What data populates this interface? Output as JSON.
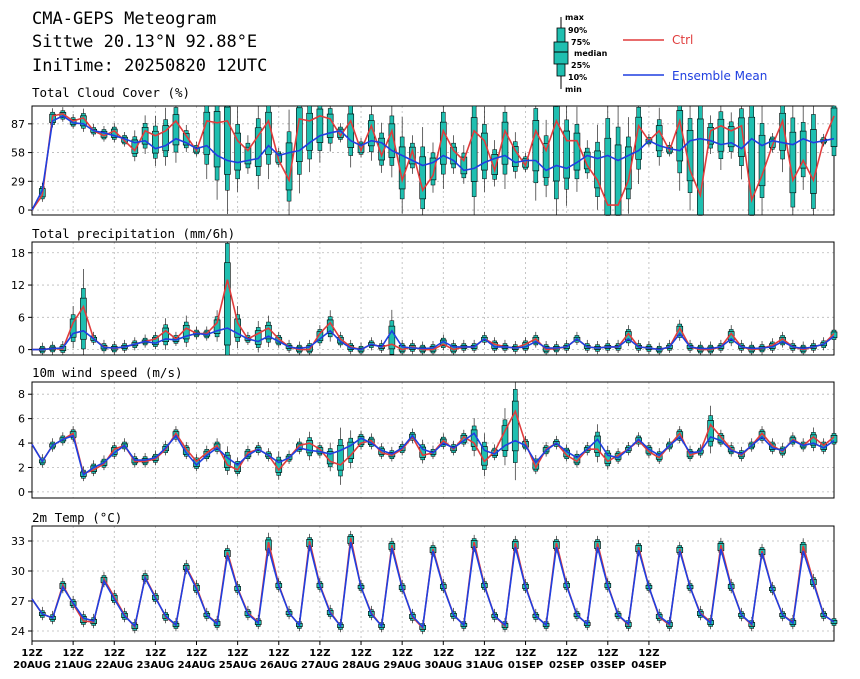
{
  "header": {
    "title": "CMA-GEPS Meteogram",
    "location": "Sittwe 20.13°N 92.88°E",
    "init_time": "IniTime: 20250820 12UTC"
  },
  "legend": {
    "box_labels": [
      "max",
      "90%",
      "75%",
      "median",
      "25%",
      "10%",
      "min"
    ],
    "ctrl_label": "Ctrl",
    "mean_label": "Ensemble Mean",
    "ctrl_color": "#e03c3c",
    "mean_color": "#1f3fe0",
    "box_color": "#1fbfb0"
  },
  "x_axis": {
    "hour_label": "12Z",
    "date_labels": [
      "20AUG",
      "21AUG",
      "22AUG",
      "23AUG",
      "24AUG",
      "25AUG",
      "26AUG",
      "27AUG",
      "28AUG",
      "29AUG",
      "30AUG",
      "31AUG",
      "01SEP",
      "02SEP",
      "03SEP",
      "04SEP"
    ]
  },
  "chart_data": [
    {
      "type": "line",
      "title": "Total Cloud Cover (%)",
      "ylim": [
        -5,
        105
      ],
      "yticks": [
        0,
        29,
        58,
        87
      ],
      "grid": true,
      "x_unit": "6-hourly steps from 20AUG 12Z",
      "series": [
        {
          "name": "Ctrl",
          "values": [
            0,
            15,
            95,
            97,
            90,
            93,
            80,
            75,
            80,
            70,
            60,
            80,
            75,
            80,
            90,
            75,
            60,
            90,
            88,
            90,
            70,
            60,
            75,
            90,
            50,
            30,
            92,
            90,
            95,
            92,
            75,
            90,
            60,
            85,
            55,
            80,
            30,
            60,
            20,
            35,
            80,
            60,
            50,
            80,
            70,
            40,
            80,
            60,
            45,
            80,
            60,
            90,
            70,
            70,
            45,
            30,
            5,
            5,
            30,
            85,
            70,
            80,
            60,
            90,
            40,
            15,
            80,
            85,
            80,
            85,
            10,
            35,
            65,
            90,
            30,
            50,
            30,
            70,
            95
          ]
        },
        {
          "name": "Ensemble Mean",
          "values": [
            0,
            20,
            90,
            95,
            88,
            87,
            80,
            78,
            75,
            72,
            68,
            70,
            62,
            65,
            72,
            68,
            62,
            65,
            55,
            50,
            48,
            50,
            52,
            65,
            55,
            58,
            60,
            68,
            75,
            78,
            80,
            70,
            65,
            70,
            68,
            60,
            55,
            50,
            45,
            48,
            55,
            50,
            40,
            42,
            48,
            52,
            55,
            48,
            50,
            50,
            40,
            45,
            42,
            48,
            55,
            52,
            55,
            50,
            55,
            60,
            70,
            65,
            62,
            60,
            70,
            72,
            70,
            66,
            68,
            62,
            72,
            65,
            70,
            68,
            66,
            72,
            68,
            70,
            72
          ]
        }
      ]
    },
    {
      "type": "line",
      "title": "Total precipitation (mm/6h)",
      "ylim": [
        -1,
        20
      ],
      "yticks": [
        0,
        6,
        12,
        18
      ],
      "grid": true,
      "x_unit": "6-hourly steps from 20AUG 12Z",
      "series": [
        {
          "name": "Ctrl",
          "values": [
            0,
            0,
            0.2,
            0.1,
            5,
            8,
            2,
            0.5,
            0.2,
            0.5,
            1,
            1.5,
            2,
            3.5,
            2,
            4,
            3,
            3,
            5,
            13,
            5,
            2,
            3,
            4,
            2,
            0.5,
            0,
            0,
            3,
            5,
            2,
            0.5,
            0,
            1,
            0.5,
            1,
            0,
            0.5,
            0,
            0,
            1,
            0,
            0.5,
            0.5,
            2,
            1,
            0.5,
            0.3,
            1,
            2,
            0,
            0.2,
            0.5,
            2,
            0.5,
            0.3,
            0.5,
            0.5,
            3,
            0.5,
            0.3,
            0,
            0.5,
            4,
            0.5,
            0,
            0,
            0.5,
            3,
            0.5,
            0,
            0.2,
            0.8,
            2,
            0.5,
            0,
            0.5,
            1,
            3
          ]
        },
        {
          "name": "Ensemble Mean",
          "values": [
            0,
            0,
            0.2,
            0.3,
            3,
            3.5,
            2,
            0.4,
            0.3,
            0.5,
            1,
            1.5,
            1.2,
            2,
            1.8,
            2.5,
            3,
            2.8,
            3.5,
            4,
            3,
            2,
            1.5,
            2.5,
            1.5,
            0.5,
            0.2,
            0.5,
            2,
            3.5,
            1.5,
            0.3,
            0,
            1,
            0.5,
            3.5,
            0.5,
            0.3,
            0.2,
            0.3,
            1.5,
            0.5,
            0.5,
            0.5,
            2,
            0.5,
            0.5,
            0.3,
            0.5,
            1.5,
            0.3,
            0.3,
            0.5,
            2,
            0.5,
            0.3,
            0.5,
            0.5,
            2,
            0.5,
            0.3,
            0,
            0.5,
            3,
            0.5,
            0.2,
            0.2,
            0.5,
            2,
            0.5,
            0.2,
            0.3,
            0.5,
            1.5,
            0.5,
            0.2,
            0.5,
            1,
            2.5
          ]
        }
      ]
    },
    {
      "type": "line",
      "title": "10m wind speed (m/s)",
      "ylim": [
        -0.5,
        9
      ],
      "yticks": [
        0,
        2,
        4,
        6,
        8
      ],
      "grid": true,
      "x_unit": "6-hourly steps from 20AUG 12Z",
      "series": [
        {
          "name": "Ctrl",
          "values": [
            3.9,
            2.5,
            3.8,
            4.3,
            4.8,
            1.5,
            1.8,
            2.3,
            3.5,
            3.8,
            2.5,
            2.5,
            2.7,
            3.5,
            4.8,
            3.5,
            2.5,
            3.2,
            3.8,
            2.2,
            1.8,
            3.2,
            3.5,
            3.0,
            1.8,
            2.8,
            3.8,
            4.0,
            3.5,
            2.5,
            2.2,
            3.0,
            4.0,
            4.2,
            3.2,
            3.0,
            3.5,
            4.5,
            3.0,
            3.2,
            4.2,
            3.5,
            4.5,
            4.0,
            2.5,
            3.3,
            5.0,
            6.6,
            4.0,
            2.0,
            3.5,
            4.0,
            3.0,
            2.5,
            3.5,
            3.5,
            2.5,
            3.0,
            3.5,
            4.2,
            3.3,
            2.8,
            3.8,
            4.8,
            3.0,
            3.3,
            5.5,
            4.5,
            3.5,
            3.0,
            3.8,
            4.8,
            3.8,
            3.3,
            4.3,
            3.8,
            4.5,
            3.8,
            4.5
          ]
        },
        {
          "name": "Ensemble Mean",
          "values": [
            3.9,
            2.5,
            3.8,
            4.3,
            4.6,
            1.4,
            2.0,
            2.4,
            3.2,
            3.8,
            2.6,
            2.6,
            2.8,
            3.6,
            4.6,
            3.2,
            2.2,
            3.0,
            3.6,
            2.8,
            2.2,
            3.0,
            3.5,
            3.0,
            2.4,
            2.8,
            3.6,
            3.4,
            3.3,
            3.1,
            3.4,
            3.8,
            4.4,
            4.0,
            3.4,
            3.1,
            3.6,
            4.6,
            3.5,
            3.2,
            4.0,
            3.6,
            4.2,
            4.8,
            3.4,
            3.1,
            3.8,
            4.2,
            3.8,
            2.4,
            3.4,
            4.0,
            3.3,
            2.8,
            3.5,
            4.3,
            3.0,
            2.8,
            3.5,
            4.3,
            3.5,
            3.0,
            3.8,
            4.5,
            3.2,
            3.3,
            4.5,
            4.2,
            3.4,
            3.1,
            3.8,
            4.5,
            3.6,
            3.4,
            4.2,
            3.8,
            4.0,
            3.6,
            4.2
          ]
        }
      ]
    },
    {
      "type": "line",
      "title": "2m Temp (°C)",
      "ylim": [
        23,
        34.5
      ],
      "yticks": [
        24,
        27,
        30,
        33
      ],
      "grid": true,
      "x_unit": "6-hourly steps from 20AUG 12Z",
      "series": [
        {
          "name": "Ctrl",
          "values": [
            27.2,
            25.7,
            25.3,
            28.6,
            26.7,
            25.0,
            24.9,
            29.2,
            27.4,
            25.6,
            24.4,
            29.4,
            27.4,
            25.4,
            24.6,
            30.4,
            28.4,
            25.6,
            24.8,
            31.9,
            28.3,
            25.8,
            24.9,
            32.9,
            28.6,
            25.8,
            24.6,
            33.0,
            28.6,
            25.9,
            24.5,
            33.3,
            28.4,
            25.8,
            24.5,
            32.6,
            28.4,
            25.4,
            24.3,
            32.2,
            28.5,
            25.6,
            24.6,
            32.9,
            28.6,
            25.5,
            24.5,
            32.8,
            28.5,
            25.5,
            24.6,
            32.8,
            28.6,
            25.6,
            24.7,
            32.8,
            28.6,
            25.6,
            24.6,
            32.4,
            28.4,
            25.4,
            24.6,
            32.2,
            28.4,
            25.8,
            24.9,
            32.6,
            28.5,
            25.6,
            24.6,
            32.0,
            28.2,
            25.6,
            24.9,
            32.5,
            29.0,
            25.6,
            24.9
          ]
        },
        {
          "name": "Ensemble Mean",
          "values": [
            27.2,
            25.7,
            25.3,
            28.4,
            26.8,
            25.3,
            25.0,
            29.0,
            27.2,
            25.5,
            24.5,
            29.3,
            27.3,
            25.5,
            24.6,
            30.3,
            28.2,
            25.6,
            24.7,
            31.6,
            28.2,
            25.7,
            24.8,
            32.3,
            28.5,
            25.8,
            24.6,
            32.6,
            28.5,
            25.8,
            24.5,
            32.9,
            28.4,
            25.7,
            24.5,
            32.3,
            28.3,
            25.5,
            24.4,
            32.0,
            28.4,
            25.6,
            24.6,
            32.5,
            28.5,
            25.5,
            24.6,
            32.4,
            28.4,
            25.5,
            24.6,
            32.4,
            28.5,
            25.6,
            24.7,
            32.4,
            28.5,
            25.6,
            24.7,
            32.1,
            28.4,
            25.5,
            24.7,
            32.0,
            28.4,
            25.7,
            24.8,
            32.2,
            28.4,
            25.6,
            24.7,
            31.8,
            28.2,
            25.6,
            24.8,
            32.0,
            28.8,
            25.6,
            24.9
          ]
        }
      ]
    }
  ]
}
